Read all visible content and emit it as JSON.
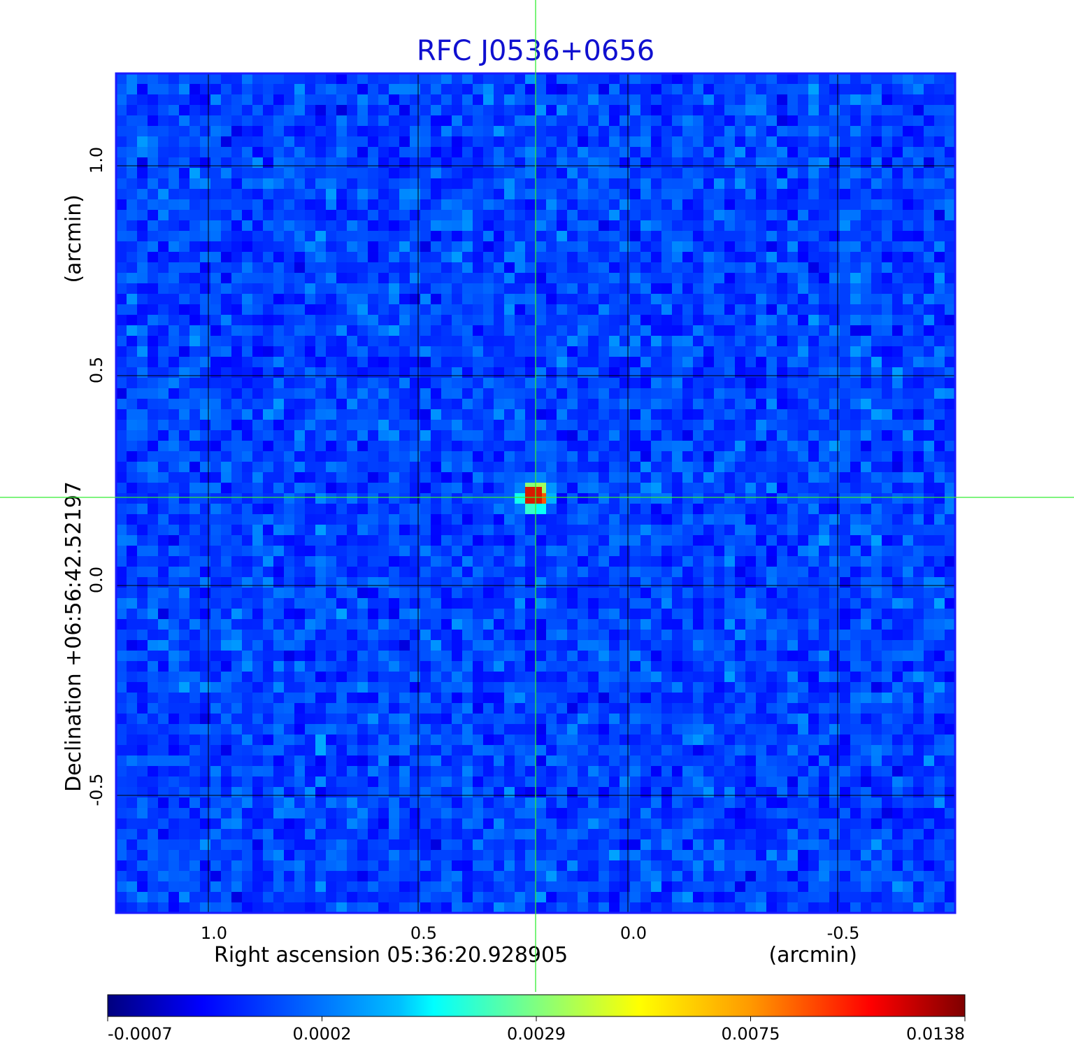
{
  "chart_data": {
    "type": "heatmap",
    "title": "RFC J0536+0656",
    "xlabel_left": "Right ascension  05:36:20.928905",
    "xlabel_right": "(arcmin)",
    "ylabel_left": "Declination  +06:56:42.52197",
    "ylabel_right": "(arcmin)",
    "x_ticks": [
      "1.0",
      "0.5",
      "0.0",
      "-0.5"
    ],
    "x_tick_values": [
      1.0,
      0.5,
      0.0,
      -0.5
    ],
    "y_ticks": [
      "1.0",
      "0.5",
      "0.0",
      "-0.5"
    ],
    "y_tick_values": [
      1.0,
      0.5,
      0.0,
      -0.5
    ],
    "xlim": [
      1.22,
      -0.78
    ],
    "ylim": [
      -0.78,
      1.22
    ],
    "grid": true,
    "crosshair": {
      "x": 0.22,
      "y": 0.21
    },
    "source_peak": {
      "x": 0.22,
      "y": 0.21,
      "value": 0.0138
    },
    "colorbar": {
      "ticks": [
        "-0.0007",
        "0.0002",
        "0.0029",
        "0.0075",
        "0.0138"
      ],
      "range": [
        -0.0007,
        0.0138
      ],
      "colormap": "jet"
    }
  },
  "colors": {
    "title": "#1010d0",
    "frame": "#1a1aff",
    "crosshair": "#33ee33",
    "grid": "#000000"
  }
}
